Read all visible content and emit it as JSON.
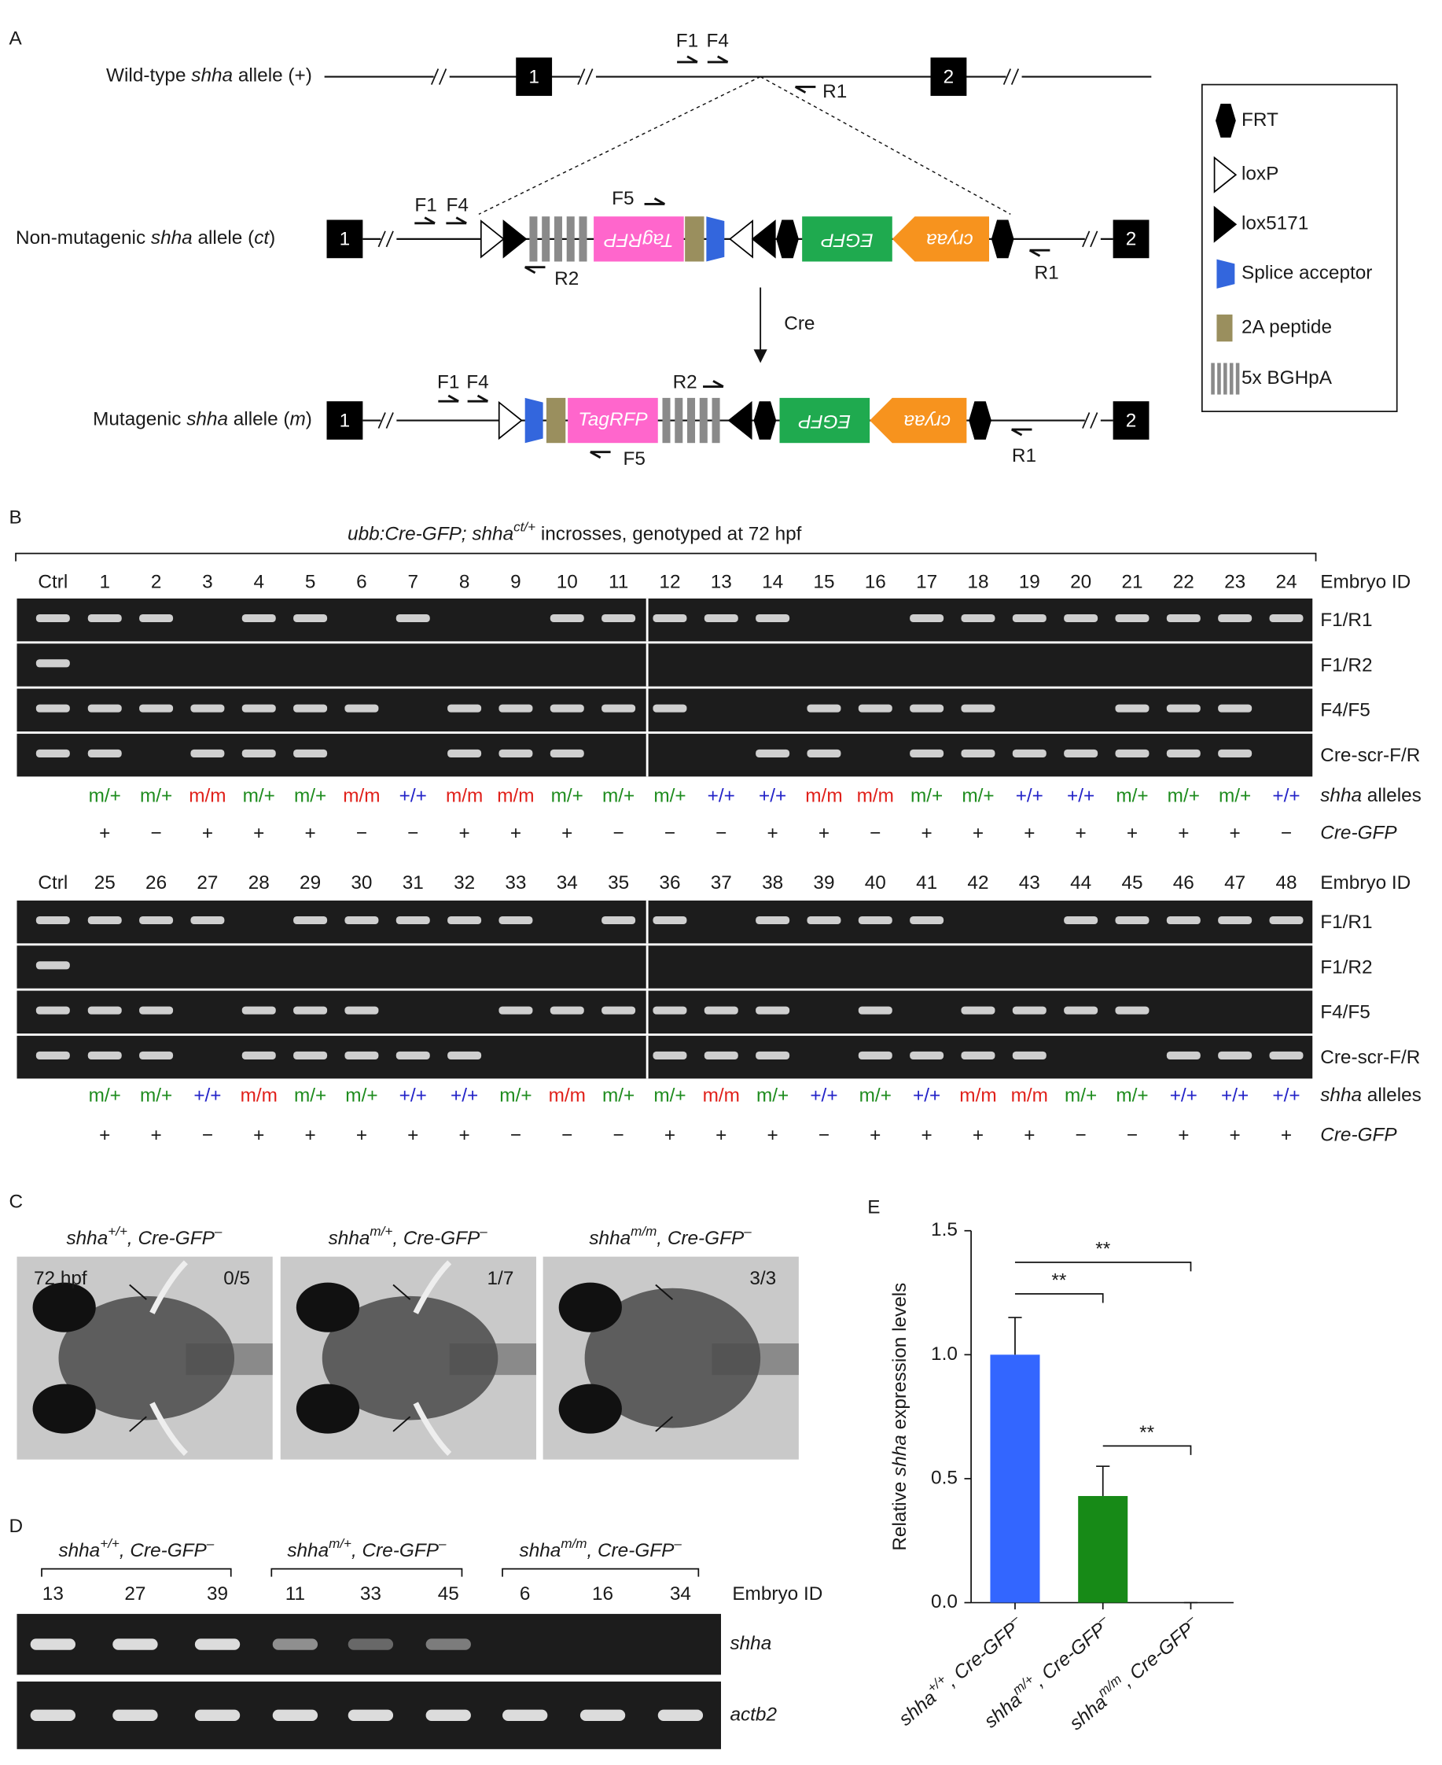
{
  "panel_a": {
    "label": "A",
    "alleles": [
      [
        {
          "t": "Wild-type "
        },
        {
          "t": "shha",
          "i": true
        },
        {
          "t": " allele (+)"
        }
      ],
      [
        {
          "t": "Non-mutagenic "
        },
        {
          "t": "shha",
          "i": true
        },
        {
          "t": " allele ("
        },
        {
          "t": "ct",
          "i": true
        },
        {
          "t": ")"
        }
      ],
      [
        {
          "t": "Mutagenic "
        },
        {
          "t": "shha",
          "i": true
        },
        {
          "t": " allele ("
        },
        {
          "t": "m",
          "i": true
        },
        {
          "t": ")"
        }
      ]
    ],
    "exons": [
      "1",
      "2"
    ],
    "primers": [
      "F1",
      "F4",
      "R1",
      "F5",
      "R2"
    ],
    "elements": [
      "TagRFP",
      "EGFP",
      "cryaa"
    ],
    "cre": "Cre",
    "legend": [
      "FRT",
      "loxP",
      "lox5171",
      "Splice acceptor",
      "2A peptide",
      "5x BGHpA"
    ]
  },
  "panel_b": {
    "label": "B",
    "title": [
      {
        "t": "ubb:Cre-GFP; shha",
        "i": true
      },
      {
        "t": "ct/+",
        "i": true,
        "sup": true
      },
      {
        "t": " incrosses, genotyped at 72 hpf"
      }
    ],
    "embryo_id_label": "Embryo ID",
    "alleles_label": [
      {
        "t": "shha",
        "i": true
      },
      {
        "t": " alleles"
      }
    ],
    "cre_label": [
      {
        "t": "Cre-GFP",
        "i": true
      }
    ],
    "primer_pairs": [
      "F1/R1",
      "F1/R2",
      "F4/F5",
      "Cre-scr-F/R"
    ],
    "genotype_colors": {
      "m/+": "#1e8c1e",
      "m/m": "#e0201a",
      "+/+": "#2424c8"
    },
    "blocks": [
      {
        "lanes": [
          "Ctrl",
          "1",
          "2",
          "3",
          "4",
          "5",
          "6",
          "7",
          "8",
          "9",
          "10",
          "11",
          "12",
          "13",
          "14",
          "15",
          "16",
          "17",
          "18",
          "19",
          "20",
          "21",
          "22",
          "23",
          "24"
        ],
        "bands": [
          [
            1,
            1,
            1,
            0,
            1,
            1,
            0,
            1,
            0,
            0,
            1,
            1,
            1,
            1,
            1,
            0,
            0,
            1,
            1,
            1,
            1,
            1,
            1,
            1,
            1
          ],
          [
            1,
            0,
            0,
            0,
            0,
            0,
            0,
            0,
            0,
            0,
            0,
            0,
            0,
            0,
            0,
            0,
            0,
            0,
            0,
            0,
            0,
            0,
            0,
            0,
            0
          ],
          [
            1,
            1,
            1,
            1,
            1,
            1,
            1,
            0,
            1,
            1,
            1,
            1,
            1,
            0,
            0,
            1,
            1,
            1,
            1,
            0,
            0,
            1,
            1,
            1,
            0
          ],
          [
            1,
            1,
            0,
            1,
            1,
            1,
            0,
            0,
            1,
            1,
            1,
            0,
            0,
            0,
            1,
            1,
            0,
            1,
            1,
            1,
            1,
            1,
            1,
            1,
            0
          ]
        ],
        "genotypes": [
          "m/+",
          "m/+",
          "m/m",
          "m/+",
          "m/+",
          "m/m",
          "+/+",
          "m/m",
          "m/m",
          "m/+",
          "m/+",
          "m/+",
          "+/+",
          "+/+",
          "m/m",
          "m/m",
          "m/+",
          "m/+",
          "+/+",
          "+/+",
          "m/+",
          "m/+",
          "m/+",
          "+/+"
        ],
        "cre": [
          "+",
          "−",
          "+",
          "+",
          "+",
          "−",
          "−",
          "+",
          "+",
          "+",
          "−",
          "−",
          "−",
          "+",
          "+",
          "−",
          "+",
          "+",
          "+",
          "+",
          "+",
          "+",
          "+",
          "−"
        ]
      },
      {
        "lanes": [
          "Ctrl",
          "25",
          "26",
          "27",
          "28",
          "29",
          "30",
          "31",
          "32",
          "33",
          "34",
          "35",
          "36",
          "37",
          "38",
          "39",
          "40",
          "41",
          "42",
          "43",
          "44",
          "45",
          "46",
          "47",
          "48"
        ],
        "bands": [
          [
            1,
            1,
            1,
            1,
            0,
            1,
            1,
            1,
            1,
            1,
            0,
            1,
            1,
            0,
            1,
            1,
            1,
            1,
            0,
            0,
            1,
            1,
            1,
            1,
            1
          ],
          [
            1,
            0,
            0,
            0,
            0,
            0,
            0,
            0,
            0,
            0,
            0,
            0,
            0,
            0,
            0,
            0,
            0,
            0,
            0,
            0,
            0,
            0,
            0,
            0,
            0
          ],
          [
            1,
            1,
            1,
            0,
            1,
            1,
            1,
            0,
            0,
            1,
            1,
            1,
            1,
            1,
            1,
            0,
            1,
            0,
            1,
            1,
            1,
            1,
            0,
            0,
            0
          ],
          [
            1,
            1,
            1,
            0,
            1,
            1,
            1,
            1,
            1,
            0,
            0,
            0,
            1,
            1,
            1,
            0,
            1,
            1,
            1,
            1,
            0,
            0,
            1,
            1,
            1
          ]
        ],
        "genotypes": [
          "m/+",
          "m/+",
          "+/+",
          "m/m",
          "m/+",
          "m/+",
          "+/+",
          "+/+",
          "m/+",
          "m/m",
          "m/+",
          "m/+",
          "m/m",
          "m/+",
          "+/+",
          "m/+",
          "+/+",
          "m/m",
          "m/m",
          "m/+",
          "m/+",
          "+/+",
          "+/+",
          "+/+"
        ],
        "cre": [
          "+",
          "+",
          "−",
          "+",
          "+",
          "+",
          "+",
          "+",
          "−",
          "−",
          "−",
          "+",
          "+",
          "+",
          "−",
          "+",
          "+",
          "+",
          "+",
          "−",
          "−",
          "+",
          "+",
          "+"
        ]
      }
    ]
  },
  "panel_c": {
    "label": "C",
    "stage": "72 hpf",
    "images": [
      {
        "title": [
          {
            "t": "shha",
            "i": true
          },
          {
            "t": "+/+",
            "i": true,
            "sup": true
          },
          {
            "t": ", Cre-GFP",
            "i": true
          },
          {
            "t": "–",
            "i": true,
            "sup": true
          }
        ],
        "count": "0/5"
      },
      {
        "title": [
          {
            "t": "shha",
            "i": true
          },
          {
            "t": "m/+",
            "i": true,
            "sup": true
          },
          {
            "t": ", Cre-GFP",
            "i": true
          },
          {
            "t": "–",
            "i": true,
            "sup": true
          }
        ],
        "count": "1/7"
      },
      {
        "title": [
          {
            "t": "shha",
            "i": true
          },
          {
            "t": "m/m",
            "i": true,
            "sup": true
          },
          {
            "t": ", Cre-GFP",
            "i": true
          },
          {
            "t": "–",
            "i": true,
            "sup": true
          }
        ],
        "count": "3/3"
      }
    ]
  },
  "panel_d": {
    "label": "D",
    "groups": [
      {
        "title": [
          {
            "t": "shha",
            "i": true
          },
          {
            "t": "+/+",
            "i": true,
            "sup": true
          },
          {
            "t": ", Cre-GFP",
            "i": true
          },
          {
            "t": "–",
            "i": true,
            "sup": true
          }
        ],
        "ids": [
          "13",
          "27",
          "39"
        ]
      },
      {
        "title": [
          {
            "t": "shha",
            "i": true
          },
          {
            "t": "m/+",
            "i": true,
            "sup": true
          },
          {
            "t": ", Cre-GFP",
            "i": true
          },
          {
            "t": "–",
            "i": true,
            "sup": true
          }
        ],
        "ids": [
          "11",
          "33",
          "45"
        ]
      },
      {
        "title": [
          {
            "t": "shha",
            "i": true
          },
          {
            "t": "m/m",
            "i": true,
            "sup": true
          },
          {
            "t": ", Cre-GFP",
            "i": true
          },
          {
            "t": "–",
            "i": true,
            "sup": true
          }
        ],
        "ids": [
          "6",
          "16",
          "34"
        ]
      }
    ],
    "embryo_id_label": "Embryo ID",
    "genes": [
      "shha",
      "actb2"
    ],
    "bands": [
      [
        1,
        1,
        1,
        0.6,
        0.4,
        0.5,
        0,
        0,
        0
      ],
      [
        1,
        1,
        1,
        1,
        1,
        1,
        1,
        1,
        1
      ]
    ]
  },
  "chart_data": {
    "type": "bar",
    "label": "E",
    "ylabel": [
      {
        "t": "Relative "
      },
      {
        "t": "shha",
        "i": true
      },
      {
        "t": " expression levels"
      }
    ],
    "categories": [
      [
        {
          "t": "shha",
          "i": true
        },
        {
          "t": "+/+",
          "i": true,
          "sup": true
        },
        {
          "t": ", Cre-GFP",
          "i": true
        },
        {
          "t": "–",
          "i": true,
          "sup": true
        }
      ],
      [
        {
          "t": "shha",
          "i": true
        },
        {
          "t": "m/+",
          "i": true,
          "sup": true
        },
        {
          "t": ", Cre-GFP",
          "i": true
        },
        {
          "t": "–",
          "i": true,
          "sup": true
        }
      ],
      [
        {
          "t": "shha",
          "i": true
        },
        {
          "t": "m/m",
          "i": true,
          "sup": true
        },
        {
          "t": ", Cre-GFP",
          "i": true
        },
        {
          "t": "–",
          "i": true,
          "sup": true
        }
      ]
    ],
    "values": [
      1,
      0.43,
      0
    ],
    "errors": [
      0.15,
      0.12,
      0
    ],
    "colors": [
      "#3366ff",
      "#178a17",
      "#178a17"
    ],
    "ylim": [
      0,
      1.5
    ],
    "yticks": [
      {
        "value": 0,
        "label": "0.0"
      },
      {
        "value": 0.5,
        "label": "0.5"
      },
      {
        "value": 1,
        "label": "1.0"
      },
      {
        "value": 1.5,
        "label": "1.5"
      }
    ],
    "annotations": [
      {
        "text": "**",
        "from": 0,
        "to": 2
      },
      {
        "text": "**",
        "from": 0,
        "to": 1
      },
      {
        "text": "**",
        "from": 1,
        "to": 2
      }
    ]
  }
}
